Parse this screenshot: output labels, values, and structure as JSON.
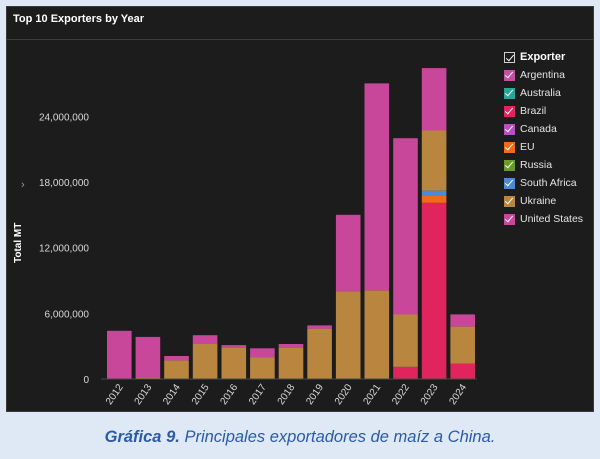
{
  "caption": {
    "label": "Gráfica 9.",
    "text": "Principales exportadores de maíz a China."
  },
  "legend": {
    "title": "Exporter",
    "check_icon": "check-icon"
  },
  "colors": {
    "panel_background": "#1c1c1c",
    "page_background": "#dfe9f6",
    "caption": "#2a5aa8"
  },
  "chart_data": {
    "type": "bar",
    "stacked": true,
    "title": "Top 10 Exporters by Year",
    "xlabel": "",
    "ylabel": "Total MT",
    "ylim": [
      0,
      28500000
    ],
    "yticks": [
      0,
      6000000,
      12000000,
      18000000,
      24000000
    ],
    "ytick_labels": [
      "0",
      "6,000,000",
      "12,000,000",
      "18,000,000",
      "24,000,000"
    ],
    "grid": false,
    "legend_position": "right",
    "categories": [
      "2012",
      "2013",
      "2014",
      "2015",
      "2016",
      "2017",
      "2018",
      "2019",
      "2020",
      "2021",
      "2022",
      "2023",
      "2024"
    ],
    "series": [
      {
        "name": "Argentina",
        "color": "#c44fa0",
        "values": [
          0,
          0,
          0,
          0,
          0,
          0,
          0,
          0,
          0,
          0,
          0,
          0,
          0
        ]
      },
      {
        "name": "Australia",
        "color": "#2aa59a",
        "values": [
          0,
          0,
          0,
          0,
          0,
          0,
          0,
          0,
          0,
          0,
          0,
          0,
          0
        ]
      },
      {
        "name": "Brazil",
        "color": "#e0245e",
        "values": [
          0,
          0,
          0,
          0,
          0,
          0,
          0,
          0,
          0,
          0,
          1100000,
          16100000,
          1400000
        ]
      },
      {
        "name": "Canada",
        "color": "#b94fc0",
        "values": [
          0,
          0,
          0,
          0,
          0,
          0,
          0,
          0,
          0,
          0,
          0,
          0,
          0
        ]
      },
      {
        "name": "EU",
        "color": "#f06a18",
        "values": [
          0,
          0,
          0,
          0,
          0,
          0,
          0,
          0,
          0,
          0,
          0,
          700000,
          0
        ]
      },
      {
        "name": "Russia",
        "color": "#6a9a2a",
        "values": [
          0,
          0,
          0,
          0,
          0,
          0,
          0,
          0,
          0,
          0,
          0,
          0,
          0
        ]
      },
      {
        "name": "South Africa",
        "color": "#4a8ad8",
        "values": [
          0,
          0,
          0,
          0,
          0,
          0,
          0,
          0,
          0,
          0,
          0,
          400000,
          0
        ]
      },
      {
        "name": "Ukraine",
        "color": "#b8863e",
        "values": [
          0,
          150000,
          1700000,
          3200000,
          2900000,
          2000000,
          2900000,
          4600000,
          8000000,
          8100000,
          4800000,
          5500000,
          3400000
        ]
      },
      {
        "name": "United States",
        "color": "#c8479b",
        "values": [
          4400000,
          3700000,
          400000,
          800000,
          200000,
          800000,
          300000,
          300000,
          7000000,
          18900000,
          16100000,
          5700000,
          1100000
        ]
      }
    ]
  }
}
